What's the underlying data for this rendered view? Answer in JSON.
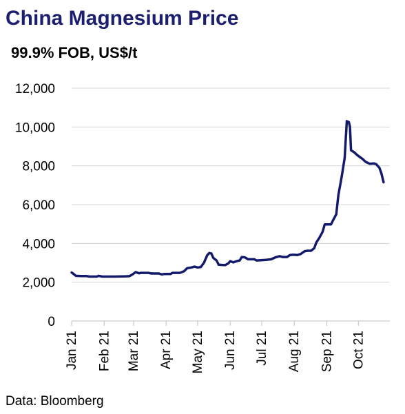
{
  "header": {
    "title": "China Magnesium Price",
    "subtitle": "99.9% FOB, US$/t"
  },
  "footer": {
    "source": "Data: Bloomberg"
  },
  "chart_data": {
    "type": "line",
    "title": "China Magnesium Price",
    "subtitle": "99.9% FOB, US$/t",
    "xlabel": "",
    "ylabel": "",
    "ylim": [
      0,
      12000
    ],
    "yticks": [
      0,
      2000,
      4000,
      6000,
      8000,
      10000,
      12000
    ],
    "ytick_labels": [
      "0",
      "2,000",
      "4,000",
      "6,000",
      "8,000",
      "10,000",
      "12,000"
    ],
    "xlim": [
      "2021-01-01",
      "2021-10-31"
    ],
    "xticks": [
      "2021-01-01",
      "2021-02-01",
      "2021-03-01",
      "2021-04-01",
      "2021-05-01",
      "2021-06-01",
      "2021-07-01",
      "2021-08-01",
      "2021-09-01",
      "2021-10-01"
    ],
    "xtick_labels": [
      "Jan 21",
      "Feb 21",
      "Mar 21",
      "Apr 21",
      "May 21",
      "Jun 21",
      "Jul 21",
      "Aug 21",
      "Sep 21",
      "Oct 21"
    ],
    "grid": "horizontal",
    "series_color": "#141a6b",
    "series": [
      {
        "points": [
          [
            "2021-01-01",
            2500
          ],
          [
            "2021-01-03",
            2420
          ],
          [
            "2021-01-05",
            2330
          ],
          [
            "2021-01-10",
            2320
          ],
          [
            "2021-01-15",
            2320
          ],
          [
            "2021-01-18",
            2290
          ],
          [
            "2021-01-25",
            2290
          ],
          [
            "2021-01-27",
            2330
          ],
          [
            "2021-01-30",
            2290
          ],
          [
            "2021-02-10",
            2290
          ],
          [
            "2021-02-20",
            2300
          ],
          [
            "2021-02-25",
            2310
          ],
          [
            "2021-02-28",
            2400
          ],
          [
            "2021-03-03",
            2520
          ],
          [
            "2021-03-06",
            2460
          ],
          [
            "2021-03-08",
            2480
          ],
          [
            "2021-03-15",
            2480
          ],
          [
            "2021-03-18",
            2450
          ],
          [
            "2021-03-25",
            2450
          ],
          [
            "2021-03-28",
            2400
          ],
          [
            "2021-03-30",
            2420
          ],
          [
            "2021-04-05",
            2420
          ],
          [
            "2021-04-07",
            2480
          ],
          [
            "2021-04-14",
            2480
          ],
          [
            "2021-04-18",
            2560
          ],
          [
            "2021-04-21",
            2720
          ],
          [
            "2021-04-25",
            2760
          ],
          [
            "2021-04-28",
            2800
          ],
          [
            "2021-05-01",
            2760
          ],
          [
            "2021-05-04",
            2780
          ],
          [
            "2021-05-07",
            3000
          ],
          [
            "2021-05-10",
            3380
          ],
          [
            "2021-05-12",
            3500
          ],
          [
            "2021-05-14",
            3480
          ],
          [
            "2021-05-16",
            3250
          ],
          [
            "2021-05-19",
            3120
          ],
          [
            "2021-05-21",
            2900
          ],
          [
            "2021-05-27",
            2880
          ],
          [
            "2021-05-30",
            2960
          ],
          [
            "2021-06-01",
            3080
          ],
          [
            "2021-06-04",
            3020
          ],
          [
            "2021-06-07",
            3080
          ],
          [
            "2021-06-10",
            3120
          ],
          [
            "2021-06-12",
            3300
          ],
          [
            "2021-06-15",
            3280
          ],
          [
            "2021-06-18",
            3180
          ],
          [
            "2021-06-24",
            3180
          ],
          [
            "2021-06-26",
            3120
          ],
          [
            "2021-07-05",
            3150
          ],
          [
            "2021-07-10",
            3180
          ],
          [
            "2021-07-14",
            3280
          ],
          [
            "2021-07-18",
            3340
          ],
          [
            "2021-07-21",
            3300
          ],
          [
            "2021-07-25",
            3300
          ],
          [
            "2021-07-28",
            3400
          ],
          [
            "2021-07-31",
            3420
          ],
          [
            "2021-08-04",
            3400
          ],
          [
            "2021-08-07",
            3450
          ],
          [
            "2021-08-11",
            3600
          ],
          [
            "2021-08-14",
            3620
          ],
          [
            "2021-08-17",
            3620
          ],
          [
            "2021-08-20",
            3750
          ],
          [
            "2021-08-22",
            4050
          ],
          [
            "2021-08-25",
            4300
          ],
          [
            "2021-08-28",
            4600
          ],
          [
            "2021-08-30",
            4980
          ],
          [
            "2021-09-05",
            4980
          ],
          [
            "2021-09-07",
            5200
          ],
          [
            "2021-09-10",
            5500
          ],
          [
            "2021-09-12",
            6500
          ],
          [
            "2021-09-15",
            7400
          ],
          [
            "2021-09-18",
            8400
          ],
          [
            "2021-09-20",
            10300
          ],
          [
            "2021-09-22",
            10250
          ],
          [
            "2021-09-23",
            10000
          ],
          [
            "2021-09-24",
            8800
          ],
          [
            "2021-09-27",
            8700
          ],
          [
            "2021-09-30",
            8550
          ],
          [
            "2021-10-05",
            8350
          ],
          [
            "2021-10-08",
            8200
          ],
          [
            "2021-10-12",
            8100
          ],
          [
            "2021-10-16",
            8120
          ],
          [
            "2021-10-18",
            8080
          ],
          [
            "2021-10-21",
            7900
          ],
          [
            "2021-10-23",
            7600
          ],
          [
            "2021-10-25",
            7150
          ]
        ]
      }
    ]
  }
}
